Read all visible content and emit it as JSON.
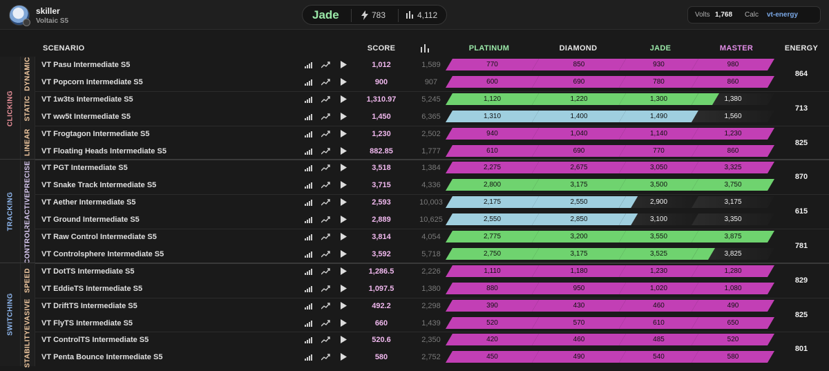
{
  "user": {
    "name": "skiller",
    "subtitle": "Voltaic S5"
  },
  "rank": {
    "name": "Jade",
    "energy": "783",
    "score_total": "4,112"
  },
  "volts": {
    "label": "Volts",
    "value": "1,768",
    "calc_label": "Calc",
    "calc_value": "vt-energy"
  },
  "colors": {
    "magenta": "#c23fb5",
    "green": "#6fd36f",
    "blue": "#9fcfdf",
    "dark": "#2a2a2a"
  },
  "columns": {
    "scenario": "SCENARIO",
    "score": "SCORE",
    "energy": "ENERGY",
    "ranks": [
      {
        "name": "PLATINUM",
        "color": "#9ae8a8"
      },
      {
        "name": "DIAMOND",
        "color": "#e6e6e6"
      },
      {
        "name": "JADE",
        "color": "#9ae8a8"
      },
      {
        "name": "MASTER",
        "color": "#e38ee8"
      }
    ]
  },
  "categories": [
    {
      "name": "CLICKING",
      "color": "#e9909a",
      "subcategories": [
        {
          "name": "DYNAMIC",
          "color": "#f0c8a0",
          "energy": "864",
          "rows": [
            {
              "name": "VT Pasu Intermediate S5",
              "score": "1,012",
              "pct": "1,589",
              "thresholds": [
                "770",
                "850",
                "930",
                "980"
              ],
              "fills": [
                "m",
                "m",
                "m",
                "m"
              ]
            },
            {
              "name": "VT Popcorn Intermediate S5",
              "score": "900",
              "pct": "907",
              "thresholds": [
                "600",
                "690",
                "780",
                "860"
              ],
              "fills": [
                "m",
                "m",
                "m",
                "m"
              ]
            }
          ]
        },
        {
          "name": "STATIC",
          "color": "#f0c8a0",
          "energy": "713",
          "rows": [
            {
              "name": "VT 1w3ts Intermediate S5",
              "score": "1,310.97",
              "pct": "5,245",
              "thresholds": [
                "1,120",
                "1,220",
                "1,300",
                "1,380"
              ],
              "fills": [
                "g",
                "g",
                "g",
                "d"
              ],
              "partial": 0.25
            },
            {
              "name": "VT ww5t Intermediate S5",
              "score": "1,450",
              "pct": "6,365",
              "thresholds": [
                "1,310",
                "1,400",
                "1,490",
                "1,560"
              ],
              "fills": [
                "b",
                "b",
                "b",
                "d"
              ],
              "partialCol": 2,
              "partialFrac": 0.6
            }
          ]
        },
        {
          "name": "LINEAR",
          "color": "#f0c8a0",
          "energy": "825",
          "rows": [
            {
              "name": "VT Frogtagon Intermediate S5",
              "score": "1,230",
              "pct": "2,502",
              "thresholds": [
                "940",
                "1,040",
                "1,140",
                "1,230"
              ],
              "fills": [
                "m",
                "m",
                "m",
                "m"
              ]
            },
            {
              "name": "VT Floating Heads Intermediate S5",
              "score": "882.85",
              "pct": "1,777",
              "thresholds": [
                "610",
                "690",
                "770",
                "860"
              ],
              "fills": [
                "m",
                "m",
                "m",
                "m"
              ]
            }
          ]
        }
      ]
    },
    {
      "name": "TRACKING",
      "color": "#8fb8f0",
      "subcategories": [
        {
          "name": "PRECISE",
          "color": "#d8c8f0",
          "energy": "870",
          "rows": [
            {
              "name": "VT PGT Intermediate S5",
              "score": "3,518",
              "pct": "1,384",
              "thresholds": [
                "2,275",
                "2,675",
                "3,050",
                "3,325"
              ],
              "fills": [
                "m",
                "m",
                "m",
                "m"
              ]
            },
            {
              "name": "VT Snake Track Intermediate S5",
              "score": "3,715",
              "pct": "4,336",
              "thresholds": [
                "2,800",
                "3,175",
                "3,500",
                "3,750"
              ],
              "fills": [
                "g",
                "g",
                "g",
                "g"
              ],
              "partialCol": 3,
              "partialFrac": 0.88
            }
          ]
        },
        {
          "name": "REACTIVE",
          "color": "#d8c8f0",
          "energy": "615",
          "rows": [
            {
              "name": "VT Aether Intermediate S5",
              "score": "2,593",
              "pct": "10,003",
              "thresholds": [
                "2,175",
                "2,550",
                "2,900",
                "3,175"
              ],
              "fills": [
                "b",
                "b",
                "d",
                "d"
              ],
              "partial": 0.15
            },
            {
              "name": "VT Ground Intermediate S5",
              "score": "2,889",
              "pct": "10,625",
              "thresholds": [
                "2,550",
                "2,850",
                "3,100",
                "3,350"
              ],
              "fills": [
                "b",
                "b",
                "d",
                "d"
              ],
              "partial": 0.15
            }
          ]
        },
        {
          "name": "CONTROL",
          "color": "#d8c8f0",
          "energy": "781",
          "rows": [
            {
              "name": "VT Raw Control Intermediate S5",
              "score": "3,814",
              "pct": "4,054",
              "thresholds": [
                "2,775",
                "3,200",
                "3,550",
                "3,875"
              ],
              "fills": [
                "g",
                "g",
                "g",
                "g"
              ],
              "partialCol": 3,
              "partialFrac": 0.8
            },
            {
              "name": "VT Controlsphere Intermediate S5",
              "score": "3,592",
              "pct": "5,718",
              "thresholds": [
                "2,750",
                "3,175",
                "3,525",
                "3,825"
              ],
              "fills": [
                "g",
                "g",
                "g",
                "d"
              ],
              "partial": 0.2
            }
          ]
        }
      ]
    },
    {
      "name": "SWITCHING",
      "color": "#8fb8f0",
      "subcategories": [
        {
          "name": "SPEED",
          "color": "#f0c8a0",
          "energy": "829",
          "rows": [
            {
              "name": "VT DotTS Intermediate S5",
              "score": "1,286.5",
              "pct": "2,226",
              "thresholds": [
                "1,110",
                "1,180",
                "1,230",
                "1,280"
              ],
              "fills": [
                "m",
                "m",
                "m",
                "m"
              ]
            },
            {
              "name": "VT EddieTS Intermediate S5",
              "score": "1,097.5",
              "pct": "1,380",
              "thresholds": [
                "880",
                "950",
                "1,020",
                "1,080"
              ],
              "fills": [
                "m",
                "m",
                "m",
                "m"
              ]
            }
          ]
        },
        {
          "name": "EVASIVE",
          "color": "#f0c8a0",
          "energy": "825",
          "rows": [
            {
              "name": "VT DriftTS Intermediate S5",
              "score": "492.2",
              "pct": "2,298",
              "thresholds": [
                "390",
                "430",
                "460",
                "490"
              ],
              "fills": [
                "m",
                "m",
                "m",
                "m"
              ]
            },
            {
              "name": "VT FlyTS Intermediate S5",
              "score": "660",
              "pct": "1,439",
              "thresholds": [
                "520",
                "570",
                "610",
                "650"
              ],
              "fills": [
                "m",
                "m",
                "m",
                "m"
              ]
            }
          ]
        },
        {
          "name": "STABILITY",
          "color": "#f0c8a0",
          "energy": "801",
          "rows": [
            {
              "name": "VT ControlTS Intermediate S5",
              "score": "520.6",
              "pct": "2,350",
              "thresholds": [
                "420",
                "460",
                "485",
                "520"
              ],
              "fills": [
                "m",
                "m",
                "m",
                "m"
              ]
            },
            {
              "name": "VT Penta Bounce Intermediate S5",
              "score": "580",
              "pct": "2,752",
              "thresholds": [
                "450",
                "490",
                "540",
                "580"
              ],
              "fills": [
                "m",
                "m",
                "m",
                "m"
              ]
            }
          ]
        }
      ]
    }
  ]
}
